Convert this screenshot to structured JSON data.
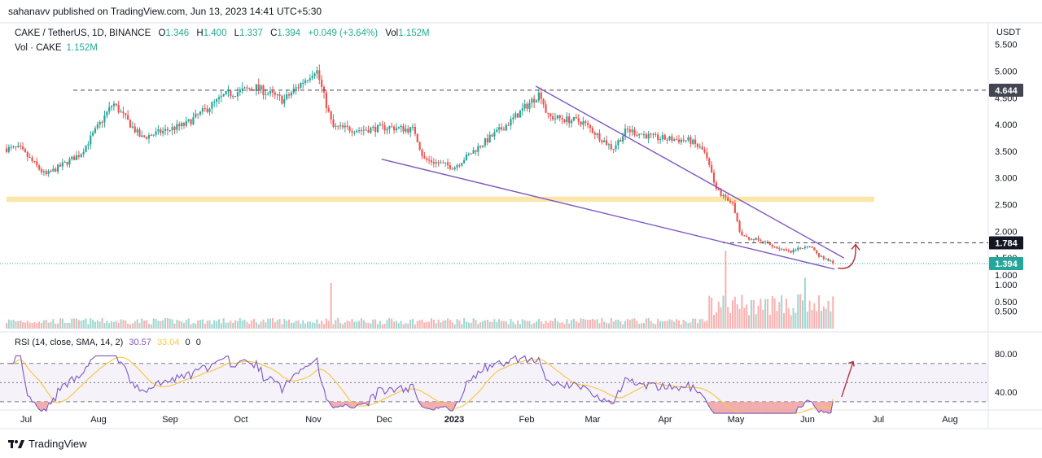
{
  "header": {
    "published": "sahanavv published on TradingView.com, Jun 13, 2023 14:41 UTC+5:30"
  },
  "legend": {
    "symbol": "CAKE / TetherUS, 1D, BINANCE",
    "o_label": "O",
    "o": "1.346",
    "h_label": "H",
    "h": "1.400",
    "l_label": "L",
    "l": "1.337",
    "c_label": "C",
    "c": "1.394",
    "change": "+0.049 (+3.64%)",
    "vol_label": "Vol",
    "vol": "1.152M",
    "vol_row_label": "Vol · CAKE",
    "vol_row_value": "1.152M",
    "rsi_label": "RSI (14, close, SMA, 14, 2)",
    "rsi_value": "30.57",
    "rsi_ma_value": "33.04",
    "z1": "0",
    "z2": "0"
  },
  "price_axis_currency": "USDT",
  "brand": "TradingView",
  "colors": {
    "up": "#26a69a",
    "down": "#ef5350",
    "trendline": "#7e57c2",
    "zone": "#f7c948",
    "rsi": "#7e57c2",
    "rsi_ma": "#f7c948",
    "arrow": "#b2263c",
    "last_price_bg": "#26a69a",
    "level_bg": "#131722"
  },
  "chart_data": {
    "type": "candlestick",
    "symbol": "CAKE / TetherUS",
    "interval": "1D",
    "price_axis": {
      "ticks": [
        "5.500",
        "5.000",
        "4.500",
        "4.000",
        "3.500",
        "3.000",
        "2.500",
        "2.000",
        "1.500",
        "1.000",
        "0.500"
      ],
      "ylim": [
        0.3,
        5.8
      ]
    },
    "time_axis": {
      "ticks": [
        "Jul",
        "Aug",
        "Sep",
        "Oct",
        "Nov",
        "Dec",
        "2023",
        "Feb",
        "Mar",
        "Apr",
        "May",
        "Jun",
        "Jul",
        "Aug"
      ]
    },
    "levels": [
      {
        "value": 4.644,
        "label": "4.644",
        "style": "dashed"
      },
      {
        "value": 1.784,
        "label": "1.784",
        "style": "dashed"
      },
      {
        "value": 1.394,
        "label": "1.394",
        "style": "dotted",
        "role": "last-price"
      }
    ],
    "support_zone": [
      2.55,
      2.65
    ],
    "trendlines": [
      {
        "from": [
          "2023-02-05",
          4.72
        ],
        "to": [
          "2023-06-17",
          1.5
        ]
      },
      {
        "from": [
          "2022-12-01",
          3.35
        ],
        "to": [
          "2023-06-13",
          1.29
        ]
      }
    ],
    "close_series": [
      {
        "date": "2022-06-29",
        "close": 3.55
      },
      {
        "date": "2022-07-10",
        "close": 3.05
      },
      {
        "date": "2022-07-25",
        "close": 3.45
      },
      {
        "date": "2022-08-08",
        "close": 4.4
      },
      {
        "date": "2022-08-20",
        "close": 3.75
      },
      {
        "date": "2022-09-08",
        "close": 4.0
      },
      {
        "date": "2022-09-25",
        "close": 4.55
      },
      {
        "date": "2022-10-08",
        "close": 4.7
      },
      {
        "date": "2022-10-20",
        "close": 4.45
      },
      {
        "date": "2022-11-03",
        "close": 5.05
      },
      {
        "date": "2022-11-10",
        "close": 3.95
      },
      {
        "date": "2022-11-22",
        "close": 3.9
      },
      {
        "date": "2022-12-04",
        "close": 3.95
      },
      {
        "date": "2022-12-15",
        "close": 3.9
      },
      {
        "date": "2022-12-19",
        "close": 3.35
      },
      {
        "date": "2023-01-01",
        "close": 3.2
      },
      {
        "date": "2023-01-12",
        "close": 3.6
      },
      {
        "date": "2023-01-25",
        "close": 4.05
      },
      {
        "date": "2023-02-07",
        "close": 4.6
      },
      {
        "date": "2023-02-10",
        "close": 4.15
      },
      {
        "date": "2023-02-25",
        "close": 4.05
      },
      {
        "date": "2023-03-10",
        "close": 3.55
      },
      {
        "date": "2023-03-16",
        "close": 3.9
      },
      {
        "date": "2023-03-28",
        "close": 3.75
      },
      {
        "date": "2023-04-12",
        "close": 3.7
      },
      {
        "date": "2023-04-18",
        "close": 3.5
      },
      {
        "date": "2023-04-24",
        "close": 2.75
      },
      {
        "date": "2023-04-30",
        "close": 2.55
      },
      {
        "date": "2023-05-04",
        "close": 1.9
      },
      {
        "date": "2023-05-10",
        "close": 1.85
      },
      {
        "date": "2023-05-25",
        "close": 1.6
      },
      {
        "date": "2023-06-02",
        "close": 1.75
      },
      {
        "date": "2023-06-06",
        "close": 1.55
      },
      {
        "date": "2023-06-13",
        "close": 1.394
      }
    ],
    "volume": {
      "axis_ticks": [
        "1.000",
        "0.500"
      ],
      "notable": [
        {
          "date": "2022-11-09",
          "value": 0.85
        },
        {
          "date": "2023-04-27",
          "value": 1.45
        },
        {
          "date": "2023-05-31",
          "value": 0.95
        },
        {
          "date": "2023-06-13",
          "value": 1.152
        }
      ]
    },
    "rsi": {
      "axis_ticks": [
        "80.00",
        "40.00"
      ],
      "bands": [
        70,
        30
      ],
      "last": 30.57,
      "ma_last": 33.04
    },
    "projection": "upward curved arrow after 1.394 toward 1.784"
  }
}
